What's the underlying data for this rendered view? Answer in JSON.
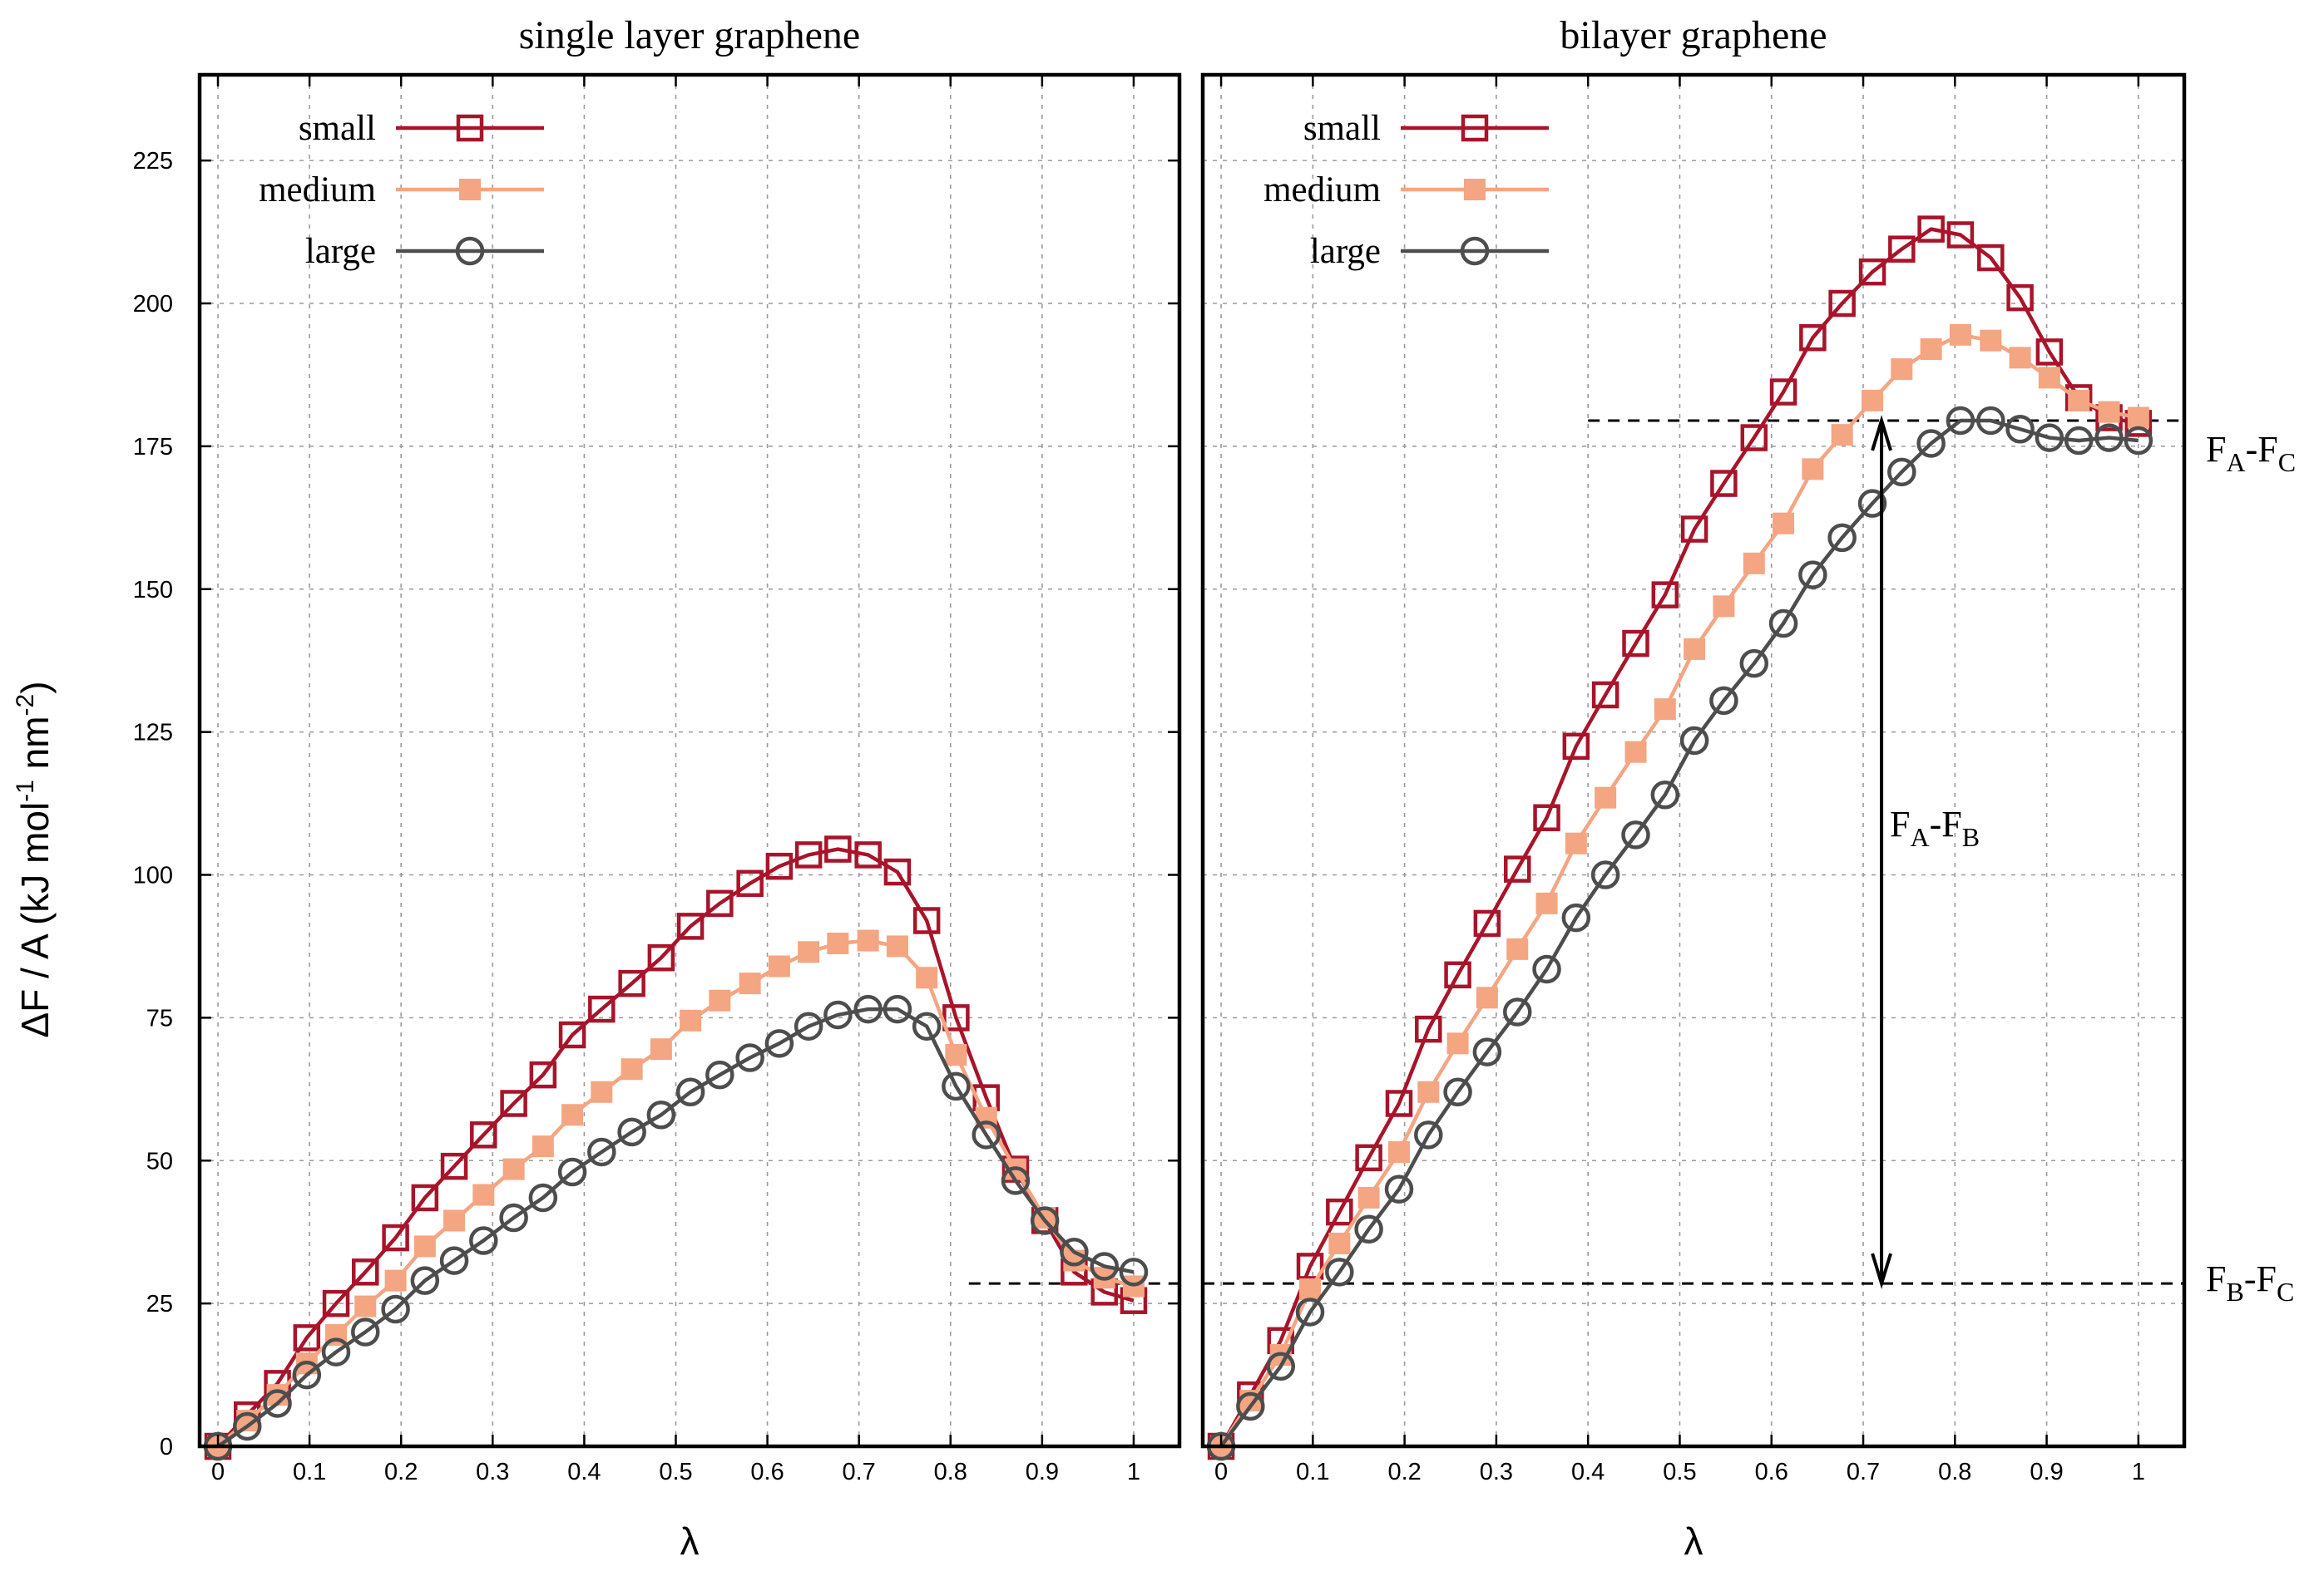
{
  "chart_data": [
    {
      "type": "line",
      "title": "single layer graphene",
      "xlabel": "λ",
      "ylabel": "ΔF / A  (kJ mol-1 nm-2)",
      "xlim": [
        -0.02,
        1.05
      ],
      "ylim": [
        0,
        240
      ],
      "xticks": [
        "0",
        "0.1",
        "0.2",
        "0.3",
        "0.4",
        "0.5",
        "0.6",
        "0.7",
        "0.8",
        "0.9",
        "1"
      ],
      "yticks": [
        "0",
        "25",
        "50",
        "75",
        "100",
        "125",
        "150",
        "175",
        "200",
        "225"
      ],
      "grid": true,
      "legend": "top-left",
      "series": [
        {
          "name": "small",
          "color": "#a8142a",
          "marker": "open-square",
          "x": [
            0,
            0.032,
            0.065,
            0.097,
            0.129,
            0.161,
            0.194,
            0.226,
            0.258,
            0.29,
            0.323,
            0.355,
            0.387,
            0.419,
            0.452,
            0.484,
            0.516,
            0.548,
            0.581,
            0.613,
            0.645,
            0.677,
            0.71,
            0.742,
            0.774,
            0.806,
            0.839,
            0.871,
            0.903,
            0.935,
            0.968,
            1.0
          ],
          "values": [
            0,
            5.5,
            11,
            19,
            25,
            30.5,
            36.5,
            43.5,
            49,
            54.5,
            60,
            65,
            72,
            76.5,
            81,
            85.5,
            91,
            95,
            98.5,
            101.5,
            103.5,
            104.5,
            103.5,
            100.5,
            92,
            75,
            61,
            48.5,
            39.5,
            30.5,
            27,
            25.5
          ]
        },
        {
          "name": "medium",
          "color": "#f4a582",
          "marker": "filled-square",
          "x": [
            0,
            0.032,
            0.065,
            0.097,
            0.129,
            0.161,
            0.194,
            0.226,
            0.258,
            0.29,
            0.323,
            0.355,
            0.387,
            0.419,
            0.452,
            0.484,
            0.516,
            0.548,
            0.581,
            0.613,
            0.645,
            0.677,
            0.71,
            0.742,
            0.774,
            0.806,
            0.839,
            0.871,
            0.903,
            0.935,
            0.968,
            1.0
          ],
          "values": [
            0,
            4.5,
            9,
            14.5,
            19.5,
            24.5,
            29,
            35,
            39.5,
            44,
            48.5,
            52.5,
            58,
            62,
            66,
            69.5,
            74.5,
            78,
            81,
            84,
            86.5,
            88,
            88.5,
            87.5,
            82,
            68.5,
            57.5,
            48.5,
            40,
            32.5,
            29.5,
            28
          ]
        },
        {
          "name": "large",
          "color": "#4d4d4d",
          "marker": "open-circle",
          "x": [
            0,
            0.032,
            0.065,
            0.097,
            0.129,
            0.161,
            0.194,
            0.226,
            0.258,
            0.29,
            0.323,
            0.355,
            0.387,
            0.419,
            0.452,
            0.484,
            0.516,
            0.548,
            0.581,
            0.613,
            0.645,
            0.677,
            0.71,
            0.742,
            0.774,
            0.806,
            0.839,
            0.871,
            0.903,
            0.935,
            0.968,
            1.0
          ],
          "values": [
            0,
            3.5,
            7.5,
            12.5,
            16.5,
            20,
            24,
            29,
            32.5,
            36,
            40,
            43.5,
            48,
            51.5,
            55,
            58,
            62,
            65,
            68,
            70.5,
            73.5,
            75.5,
            76.5,
            76.5,
            73.5,
            63,
            54.5,
            46.5,
            39.5,
            34,
            31.5,
            30.5
          ]
        }
      ],
      "reference_lines": [
        {
          "label": "",
          "y": 28.5,
          "x_from": 0.82,
          "x_to": 1.05
        }
      ]
    },
    {
      "type": "line",
      "title": "bilayer graphene",
      "xlabel": "λ",
      "ylabel": "",
      "xlim": [
        -0.02,
        1.05
      ],
      "ylim": [
        0,
        240
      ],
      "xticks": [
        "0",
        "0.1",
        "0.2",
        "0.3",
        "0.4",
        "0.5",
        "0.6",
        "0.7",
        "0.8",
        "0.9",
        "1"
      ],
      "yticks": [],
      "grid": true,
      "legend": "top-left",
      "series": [
        {
          "name": "small",
          "color": "#a8142a",
          "marker": "open-square",
          "x": [
            0,
            0.032,
            0.065,
            0.097,
            0.129,
            0.161,
            0.194,
            0.226,
            0.258,
            0.29,
            0.323,
            0.355,
            0.387,
            0.419,
            0.452,
            0.484,
            0.516,
            0.548,
            0.581,
            0.613,
            0.645,
            0.677,
            0.71,
            0.742,
            0.774,
            0.806,
            0.839,
            0.871,
            0.903,
            0.935,
            0.968,
            1.0
          ],
          "values": [
            0,
            9,
            18.5,
            31.5,
            41,
            50.5,
            60,
            73,
            82.5,
            91.5,
            101,
            110,
            122.5,
            131.5,
            140.5,
            149,
            160.5,
            168.5,
            176.5,
            184.5,
            194,
            200,
            205.5,
            209.5,
            213,
            212,
            208,
            201,
            191.5,
            183.5,
            180,
            179
          ]
        },
        {
          "name": "medium",
          "color": "#f4a582",
          "marker": "filled-square",
          "x": [
            0,
            0.032,
            0.065,
            0.097,
            0.129,
            0.161,
            0.194,
            0.226,
            0.258,
            0.29,
            0.323,
            0.355,
            0.387,
            0.419,
            0.452,
            0.484,
            0.516,
            0.548,
            0.581,
            0.613,
            0.645,
            0.677,
            0.71,
            0.742,
            0.774,
            0.806,
            0.839,
            0.871,
            0.903,
            0.935,
            0.968,
            1.0
          ],
          "values": [
            0,
            8,
            16,
            27.5,
            35.5,
            43.5,
            51.5,
            62,
            70.5,
            78.5,
            87,
            95,
            105.5,
            113.5,
            121.5,
            129,
            139.5,
            147,
            154.5,
            161.5,
            171,
            177,
            183,
            188.5,
            192,
            194.5,
            193.5,
            190.5,
            187,
            183,
            181,
            180
          ]
        },
        {
          "name": "large",
          "color": "#4d4d4d",
          "marker": "open-circle",
          "x": [
            0,
            0.032,
            0.065,
            0.097,
            0.129,
            0.161,
            0.194,
            0.226,
            0.258,
            0.29,
            0.323,
            0.355,
            0.387,
            0.419,
            0.452,
            0.484,
            0.516,
            0.548,
            0.581,
            0.613,
            0.645,
            0.677,
            0.71,
            0.742,
            0.774,
            0.806,
            0.839,
            0.871,
            0.903,
            0.935,
            0.968,
            1.0
          ],
          "values": [
            0,
            7,
            14,
            23.5,
            30.5,
            38,
            45,
            54.5,
            62,
            69,
            76,
            83.5,
            92.5,
            100,
            107,
            114,
            123.5,
            130.5,
            137,
            144,
            152.5,
            159,
            165,
            170.5,
            175.5,
            179.5,
            179.5,
            178,
            176.5,
            176,
            176.5,
            176
          ]
        }
      ],
      "reference_lines": [
        {
          "label": "FA-FC",
          "y": 179.5,
          "x_from": 0.4,
          "x_to": 1.05
        },
        {
          "label": "FB-FC",
          "y": 28.5,
          "x_from": -0.02,
          "x_to": 1.05
        }
      ],
      "arrow": {
        "x": 0.72,
        "y_from": 28.5,
        "y_to": 179.5,
        "label": "FA-FB"
      }
    }
  ],
  "annotations": {
    "fa_fc": {
      "F1": "F",
      "s1": "A",
      "dash": "-",
      "F2": "F",
      "s2": "C"
    },
    "fb_fc": {
      "F1": "F",
      "s1": "B",
      "dash": "-",
      "F2": "F",
      "s2": "C"
    },
    "fa_fb": {
      "F1": "F",
      "s1": "A",
      "dash": "-",
      "F2": "F",
      "s2": "B"
    }
  },
  "ylabel_parts": {
    "main": "ΔF / A  (kJ mol",
    "sup1": "-1",
    "mid": " nm",
    "sup2": "-2",
    "end": ")"
  }
}
